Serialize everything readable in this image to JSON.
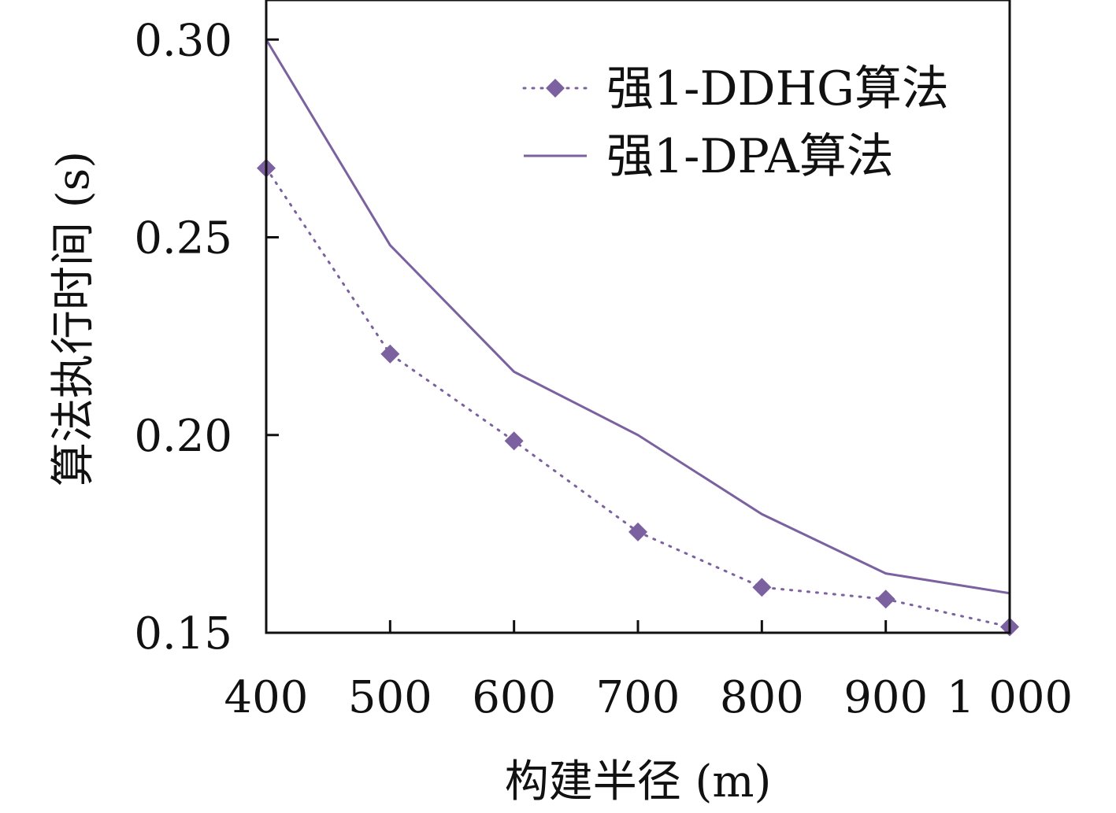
{
  "chart_data": {
    "type": "line",
    "x": [
      400,
      500,
      600,
      700,
      800,
      900,
      1000
    ],
    "x_tick_labels": [
      "400",
      "500",
      "600",
      "700",
      "800",
      "900",
      "1 000"
    ],
    "y_tick_labels": [
      "0.15",
      "0.20",
      "0.25",
      "0.30"
    ],
    "y_ticks": [
      0.15,
      0.2,
      0.25,
      0.3
    ],
    "xlim": [
      400,
      1000
    ],
    "ylim": [
      0.15,
      0.31
    ],
    "xlabel": "构建半径 (m)",
    "ylabel": "算法执行时间 (s)",
    "grid": false,
    "legend_position": "top-right",
    "series": [
      {
        "name": "强1-DDHG算法",
        "values": [
          0.2675,
          0.2205,
          0.1985,
          0.1755,
          0.1615,
          0.1585,
          0.1515
        ],
        "color": "#7b619f",
        "line_style": "dotted",
        "marker": "diamond"
      },
      {
        "name": "强1-DPA算法",
        "values": [
          0.3,
          0.248,
          0.216,
          0.2,
          0.18,
          0.165,
          0.16
        ],
        "color": "#7b619f",
        "line_style": "solid",
        "marker": "none"
      }
    ]
  }
}
